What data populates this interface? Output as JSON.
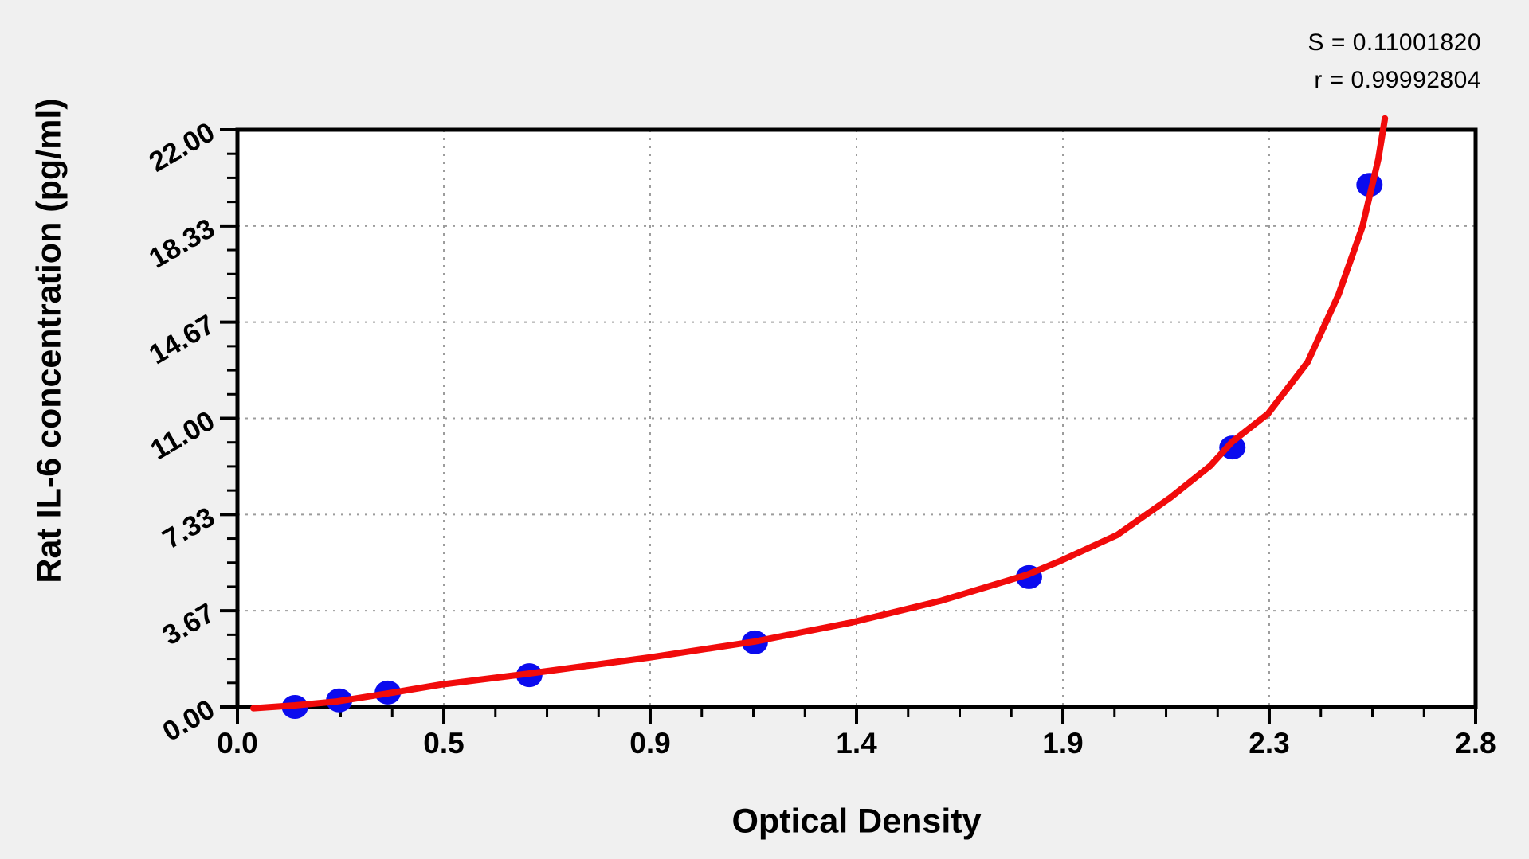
{
  "stats": {
    "s_line": "S = 0.11001820",
    "r_line": "r = 0.99992804"
  },
  "colors": {
    "background": "#f0f0f0",
    "plot_background": "#ffffff",
    "frame": "#000000",
    "grid": "#9c9c9c",
    "curve": "#f10b0b",
    "marker": "#0b0bee",
    "text": "#000000"
  },
  "chart_data": {
    "type": "scatter",
    "title": "",
    "xlabel": "Optical Density",
    "ylabel": "Rat IL-6 concentration  (pg/ml)",
    "xlim": [
      0,
      2.8
    ],
    "ylim": [
      0,
      22
    ],
    "grid": "dashed gray lines at every major tick, plot framed on all four sides, ticks outside",
    "legend_position": "none",
    "x_axis": {
      "major_tick_values": [
        0,
        0.4667,
        0.9333,
        1.4,
        1.8667,
        2.3333,
        2.8
      ],
      "major_tick_labels": [
        "0.0",
        "0.5",
        "0.9",
        "1.4",
        "1.9",
        "2.3",
        "2.8"
      ],
      "minor_divisions": 4
    },
    "y_axis": {
      "major_tick_values": [
        0,
        3.6667,
        7.3333,
        11,
        14.6667,
        18.3333,
        22
      ],
      "major_tick_labels": [
        "0.00",
        "3.67",
        "7.33",
        "11.00",
        "14.67",
        "18.33",
        "22.00"
      ],
      "minor_divisions": 4,
      "label_rotation_deg": -30
    },
    "series": [
      {
        "name": "standard-points",
        "type": "scatter",
        "points": [
          [
            0.13,
            0.0
          ],
          [
            0.23,
            0.25
          ],
          [
            0.34,
            0.55
          ],
          [
            0.66,
            1.21
          ],
          [
            1.17,
            2.46
          ],
          [
            1.79,
            4.95
          ],
          [
            2.25,
            9.89
          ],
          [
            2.56,
            19.9
          ]
        ]
      },
      {
        "name": "fitted-curve",
        "type": "line",
        "points": [
          [
            0.036,
            -0.05
          ],
          [
            0.13,
            0.06
          ],
          [
            0.225,
            0.21
          ],
          [
            0.341,
            0.52
          ],
          [
            0.459,
            0.85
          ],
          [
            0.659,
            1.27
          ],
          [
            0.93,
            1.88
          ],
          [
            1.169,
            2.49
          ],
          [
            1.389,
            3.22
          ],
          [
            1.589,
            4.04
          ],
          [
            1.786,
            5.04
          ],
          [
            1.859,
            5.55
          ],
          [
            1.989,
            6.55
          ],
          [
            2.11,
            7.98
          ],
          [
            2.2,
            9.19
          ],
          [
            2.249,
            10.1
          ],
          [
            2.33,
            11.17
          ],
          [
            2.42,
            13.14
          ],
          [
            2.49,
            15.72
          ],
          [
            2.544,
            18.3
          ],
          [
            2.58,
            20.88
          ],
          [
            2.595,
            22.43
          ]
        ]
      }
    ],
    "annotations": {
      "S": "0.11001820",
      "r": "0.99992804"
    }
  }
}
